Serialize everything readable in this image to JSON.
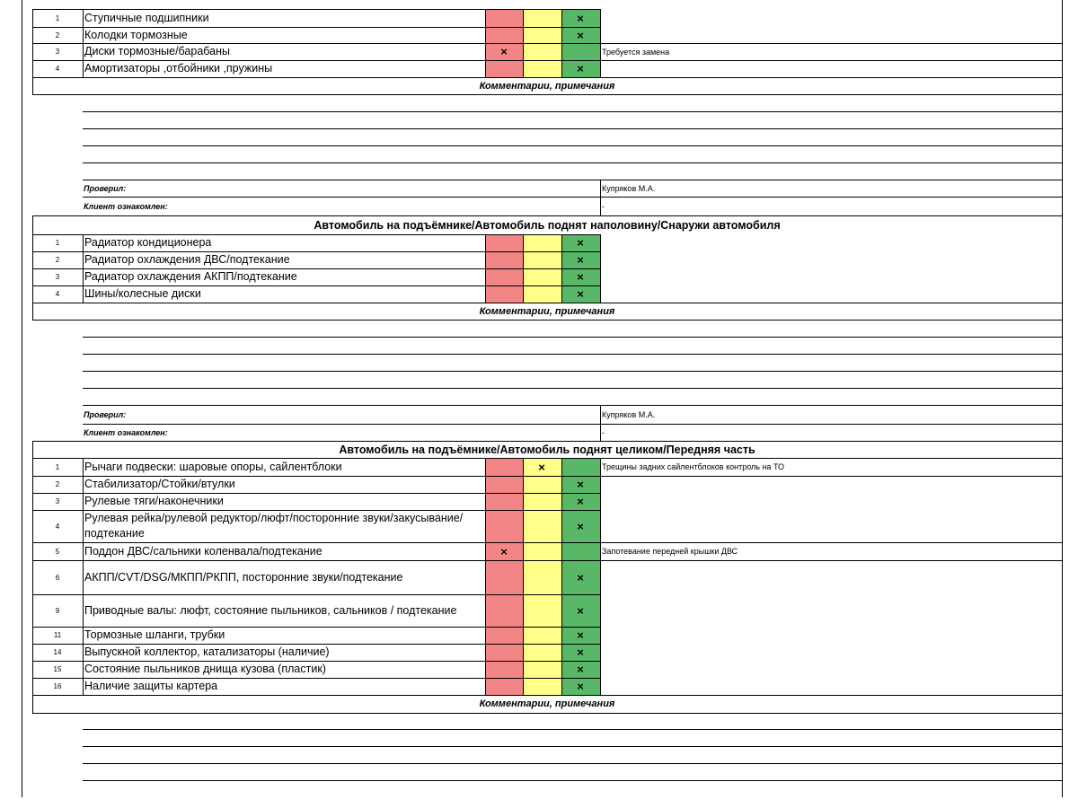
{
  "sections": [
    {
      "title": "",
      "rows": [
        {
          "num": "1",
          "name": "Ступичные подшипники",
          "mark": "green",
          "comment": ""
        },
        {
          "num": "2",
          "name": "Колодки тормозные",
          "mark": "green",
          "comment": ""
        },
        {
          "num": "3",
          "name": "Диски тормозные/барабаны",
          "mark": "red",
          "comment": "Требуется замена"
        },
        {
          "num": "4",
          "name": "Амортизаторы ,отбойники ,пружины",
          "mark": "green",
          "comment": ""
        }
      ],
      "comments_title": "Комментарии, примечания",
      "checked_label": "Проверил:",
      "checked_value": "Купряков М.А.",
      "client_label": "Клиент ознакомлен:",
      "client_value": "-"
    },
    {
      "title": "Автомобиль на подъёмнике/Автомобиль поднят наполовину/Снаружи автомобиля",
      "rows": [
        {
          "num": "1",
          "name": "Радиатор кондиционера",
          "mark": "green",
          "comment": ""
        },
        {
          "num": "2",
          "name": "Радиатор охлаждения ДВС/подтекание",
          "mark": "green",
          "comment": ""
        },
        {
          "num": "3",
          "name": "Радиатор охлаждения АКПП/подтекание",
          "mark": "green",
          "comment": ""
        },
        {
          "num": "4",
          "name": "Шины/колесные диски",
          "mark": "green",
          "comment": ""
        }
      ],
      "comments_title": "Комментарии, примечания",
      "checked_label": "Проверил:",
      "checked_value": "Купряков М.А.",
      "client_label": "Клиент ознакомлен:",
      "client_value": "-"
    },
    {
      "title": "Автомобиль на подъёмнике/Автомобиль поднят целиком/Передняя часть",
      "rows": [
        {
          "num": "1",
          "name": "Рычаги подвески: шаровые опоры, сайлентблоки",
          "mark": "yellow",
          "comment": "Трещины задних сайлентблоков контроль на ТО"
        },
        {
          "num": "2",
          "name": "Стабилизатор/Стойки/втулки",
          "mark": "green",
          "comment": ""
        },
        {
          "num": "3",
          "name": "Рулевые тяги/наконечники",
          "mark": "green",
          "comment": ""
        },
        {
          "num": "4",
          "name": "Рулевая рейка/рулевой редуктор/люфт/посторонние звуки/закусывание/подтекание",
          "mark": "green",
          "comment": ""
        },
        {
          "num": "5",
          "name": "Поддон ДВС/сальники коленвала/подтекание",
          "mark": "red",
          "comment": "Запотевание передней крышки ДВС"
        },
        {
          "num": "6",
          "name": "АКПП/CVT/DSG/МКПП/РКПП, посторонние звуки/подтекание",
          "mark": "green",
          "comment": ""
        },
        {
          "num": "9",
          "name": "Приводные валы: люфт, состояние пыльников, сальников / подтекание",
          "mark": "green",
          "comment": ""
        },
        {
          "num": "11",
          "name": "Тормозные шланги, трубки",
          "mark": "green",
          "comment": ""
        },
        {
          "num": "14",
          "name": "Выпускной коллектор, катализаторы (наличие)",
          "mark": "green",
          "comment": ""
        },
        {
          "num": "15",
          "name": "Состояние пыльников днища кузова (пластик)",
          "mark": "green",
          "comment": ""
        },
        {
          "num": "16",
          "name": "Наличие защиты картера",
          "mark": "green",
          "comment": ""
        }
      ],
      "comments_title": "Комментарии, примечания"
    }
  ],
  "mark_symbol": "×",
  "colors": {
    "red": "#f28686",
    "yellow": "#ffff8a",
    "green": "#58b868"
  }
}
